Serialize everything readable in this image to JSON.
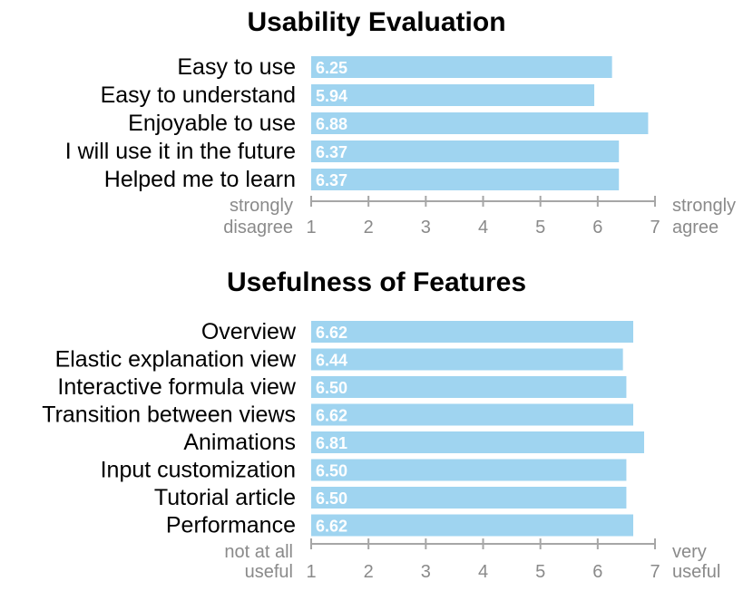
{
  "chart_data": [
    {
      "type": "bar",
      "orientation": "horizontal",
      "title": "Usability Evaluation",
      "categories": [
        "Easy to use",
        "Easy to understand",
        "Enjoyable to use",
        "I will use it in the future",
        "Helped me to learn"
      ],
      "values": [
        6.25,
        5.94,
        6.88,
        6.37,
        6.37
      ],
      "value_labels": [
        "6.25",
        "5.94",
        "6.88",
        "6.37",
        "6.37"
      ],
      "xlim": [
        1,
        7
      ],
      "x_ticks": [
        "1",
        "2",
        "3",
        "4",
        "5",
        "6",
        "7"
      ],
      "scale_low_label": [
        "strongly",
        "disagree"
      ],
      "scale_high_label": [
        "strongly",
        "agree"
      ],
      "bar_color": "#9fd4f0",
      "grid": false,
      "legend": "none"
    },
    {
      "type": "bar",
      "orientation": "horizontal",
      "title": "Usefulness of Features",
      "categories": [
        "Overview",
        "Elastic explanation view",
        "Interactive formula view",
        "Transition between views",
        "Animations",
        "Input customization",
        "Tutorial article",
        "Performance"
      ],
      "values": [
        6.62,
        6.44,
        6.5,
        6.62,
        6.81,
        6.5,
        6.5,
        6.62
      ],
      "value_labels": [
        "6.62",
        "6.44",
        "6.50",
        "6.62",
        "6.81",
        "6.50",
        "6.50",
        "6.62"
      ],
      "xlim": [
        1,
        7
      ],
      "x_ticks": [
        "1",
        "2",
        "3",
        "4",
        "5",
        "6",
        "7"
      ],
      "scale_low_label": [
        "not at all",
        "useful"
      ],
      "scale_high_label": [
        "very",
        "useful"
      ],
      "bar_color": "#9fd4f0",
      "grid": false,
      "legend": "none"
    }
  ],
  "axis_color": "#a6a6a6"
}
